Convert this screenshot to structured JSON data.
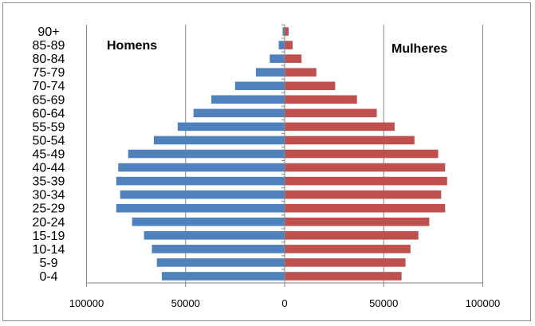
{
  "chart_data": {
    "type": "bar",
    "orientation": "horizontal",
    "layout": "population-pyramid",
    "title": "",
    "xlabel": "",
    "ylabel": "",
    "xlim": [
      -100000,
      100000
    ],
    "x_ticks": [
      -100000,
      -50000,
      0,
      50000,
      100000
    ],
    "x_tick_labels": [
      "100000",
      "50000",
      "0",
      "50000",
      "100000"
    ],
    "grid": "vertical major gridlines",
    "categories": [
      "0-4",
      "5-9",
      "10-14",
      "15-19",
      "20-24",
      "25-29",
      "30-34",
      "35-39",
      "40-44",
      "45-49",
      "50-54",
      "55-59",
      "60-64",
      "65-69",
      "70-74",
      "75-79",
      "80-84",
      "85-89",
      "90+"
    ],
    "series": [
      {
        "name": "Homens",
        "side": "left",
        "color": "#4f81bd",
        "values": [
          62000,
          64500,
          67000,
          71000,
          77000,
          85000,
          83000,
          85000,
          84000,
          79000,
          66000,
          54000,
          46000,
          37000,
          25000,
          14500,
          7500,
          3000,
          1000
        ]
      },
      {
        "name": "Mulheres",
        "side": "right",
        "color": "#c0504d",
        "values": [
          59000,
          61000,
          63500,
          67500,
          73000,
          81000,
          79000,
          82000,
          81000,
          77500,
          65500,
          55500,
          46500,
          36500,
          25500,
          16000,
          8500,
          4000,
          2000
        ]
      }
    ]
  }
}
